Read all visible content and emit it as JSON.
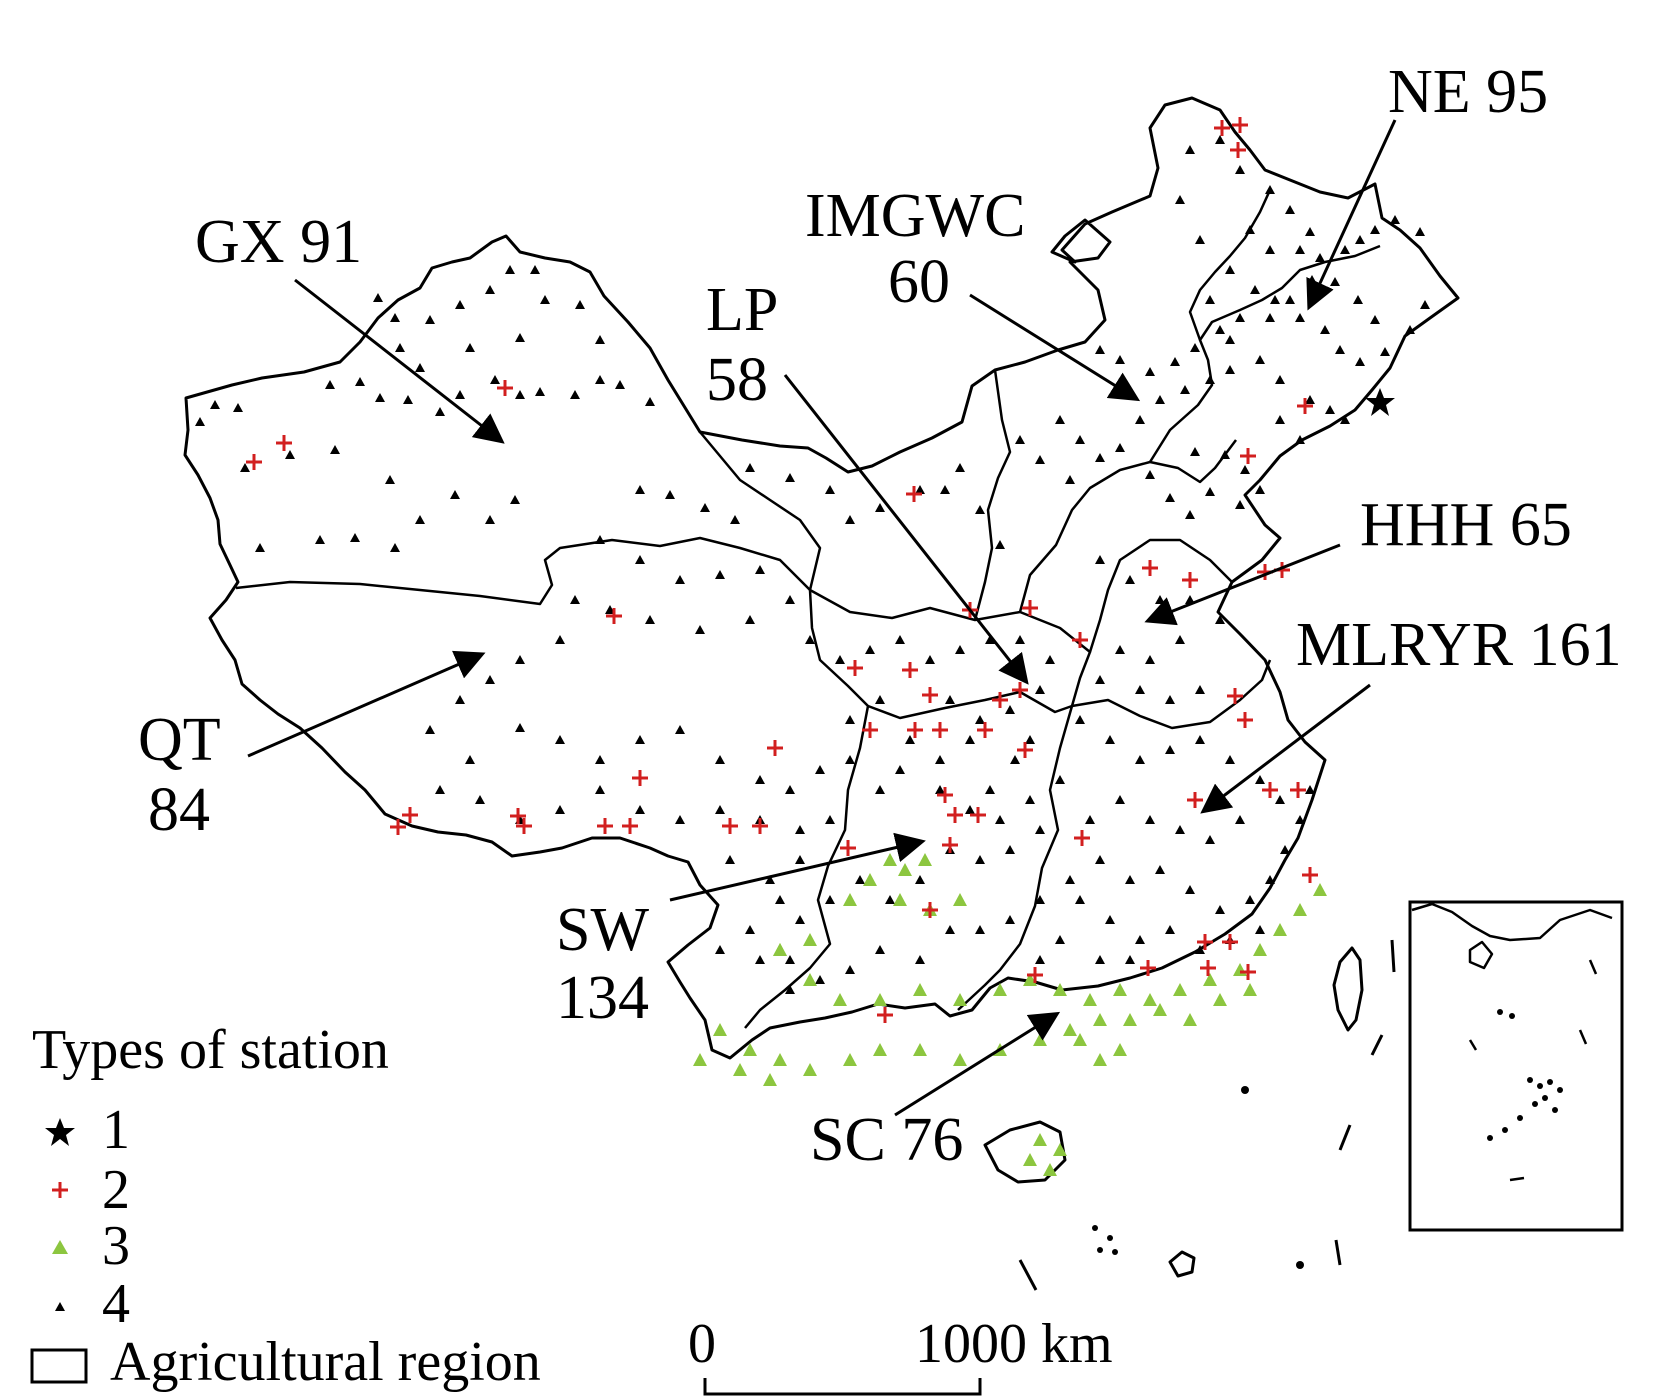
{
  "colors": {
    "type1": "#000000",
    "type2": "#d21f1f",
    "type3": "#8cc63f",
    "type4": "#000000",
    "boundary": "#000000"
  },
  "regions": [
    {
      "id": "GX",
      "name": "GX",
      "count": "91"
    },
    {
      "id": "IMGWC",
      "name": "IMGWC",
      "count": "60"
    },
    {
      "id": "LP",
      "name": "LP",
      "count": "58"
    },
    {
      "id": "NE",
      "name": "NE",
      "count": "95"
    },
    {
      "id": "HHH",
      "name": "HHH",
      "count": "65"
    },
    {
      "id": "MLRYR",
      "name": "MLRYR",
      "count": "161"
    },
    {
      "id": "QT",
      "name": "QT",
      "count": "84"
    },
    {
      "id": "SW",
      "name": "SW",
      "count": "134"
    },
    {
      "id": "SC",
      "name": "SC",
      "count": "76"
    }
  ],
  "legend": {
    "title": "Types of station",
    "items": [
      {
        "type": 1,
        "label": "1",
        "symbol": "star-icon"
      },
      {
        "type": 2,
        "label": "2",
        "symbol": "plus-icon"
      },
      {
        "type": 3,
        "label": "3",
        "symbol": "triangle-icon"
      },
      {
        "type": 4,
        "label": "4",
        "symbol": "small-triangle-icon"
      }
    ],
    "region_label": "Agricultural region"
  },
  "scale_bar": {
    "start": "0",
    "end": "1000 km"
  }
}
